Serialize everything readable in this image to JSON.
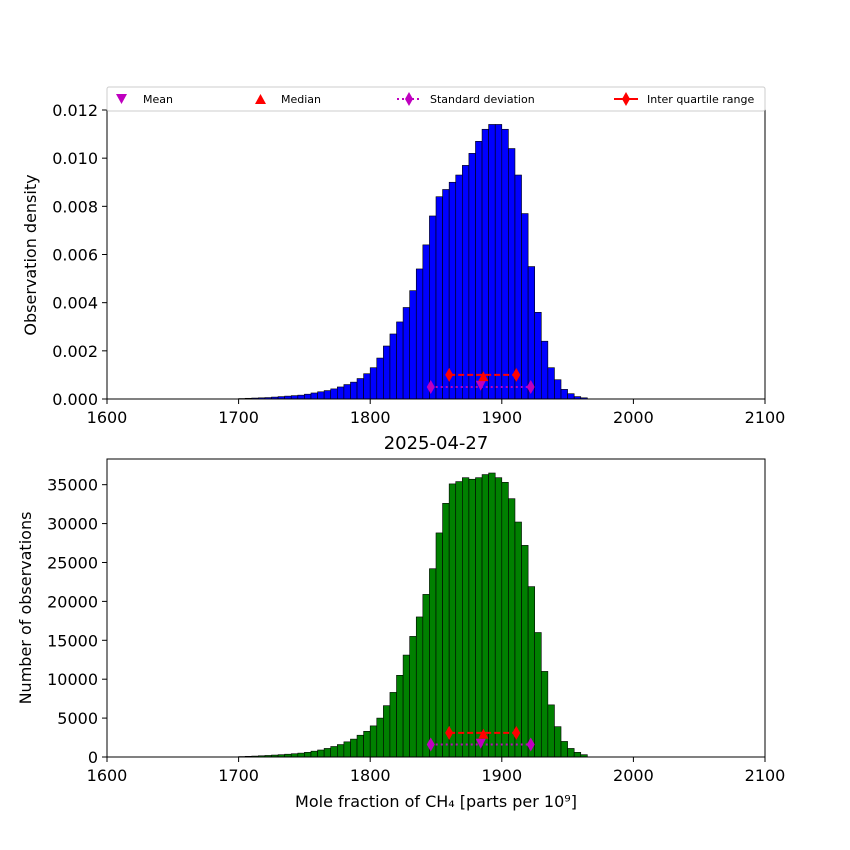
{
  "chart_data": [
    {
      "type": "bar",
      "ylabel": "Observation density",
      "xlim": [
        1600,
        2100
      ],
      "ylim": [
        0,
        0.012
      ],
      "xticks": [
        "1600",
        "1700",
        "1800",
        "1900",
        "2000",
        "2100"
      ],
      "yticks": [
        "0.000",
        "0.002",
        "0.004",
        "0.006",
        "0.008",
        "0.010",
        "0.012"
      ],
      "bar_color": "#0000ff",
      "bins": {
        "start": 1700,
        "width": 5
      },
      "values": [
        2e-05,
        3e-05,
        4e-05,
        5e-05,
        6e-05,
        8e-05,
        0.0001,
        0.00012,
        0.00014,
        0.00016,
        0.0002,
        0.00025,
        0.0003,
        0.00035,
        0.00042,
        0.0005,
        0.0006,
        0.0007,
        0.00085,
        0.00105,
        0.0013,
        0.0017,
        0.0022,
        0.0027,
        0.0032,
        0.0038,
        0.0045,
        0.0054,
        0.0064,
        0.0076,
        0.0084,
        0.0087,
        0.009,
        0.0093,
        0.0097,
        0.0102,
        0.0107,
        0.0112,
        0.0114,
        0.0114,
        0.0112,
        0.0104,
        0.0093,
        0.0077,
        0.0055,
        0.0036,
        0.0024,
        0.0013,
        0.0008,
        0.0004,
        0.00022,
        0.0001,
        5e-05
      ],
      "markers": {
        "mean": {
          "x": 1884,
          "y": 0.00055,
          "color": "#bf00bf"
        },
        "median": {
          "x": 1886,
          "y": 0.00095,
          "color": "#ff0000"
        },
        "std": {
          "x1": 1846,
          "x2": 1922,
          "y": 0.0005,
          "color": "#bf00bf"
        },
        "iqr": {
          "x1": 1860,
          "x2": 1911,
          "y": 0.001,
          "color": "#ff0000"
        }
      },
      "legend": {
        "placement": "top",
        "entries": [
          "Mean",
          "Median",
          "Standard deviation",
          "Inter quartile range"
        ]
      }
    },
    {
      "type": "bar",
      "title": "2025-04-27",
      "xlabel": "Mole fraction of CH₄ [parts per 10⁹]",
      "ylabel": "Number of observations",
      "xlim": [
        1600,
        2100
      ],
      "ylim": [
        0,
        38300
      ],
      "xticks": [
        "1600",
        "1700",
        "1800",
        "1900",
        "2000",
        "2100"
      ],
      "yticks": [
        "0",
        "5000",
        "10000",
        "15000",
        "20000",
        "25000",
        "30000",
        "35000"
      ],
      "bar_color": "#008000",
      "bins": {
        "start": 1700,
        "width": 5
      },
      "values": [
        60,
        90,
        120,
        160,
        200,
        250,
        300,
        360,
        420,
        500,
        600,
        750,
        900,
        1100,
        1350,
        1600,
        1950,
        2300,
        2800,
        3300,
        4000,
        5000,
        6600,
        8300,
        10500,
        13100,
        15500,
        18000,
        20900,
        24200,
        28800,
        32600,
        35100,
        35400,
        35900,
        35700,
        35900,
        36300,
        36500,
        35900,
        35300,
        33200,
        30200,
        27200,
        21900,
        16000,
        11000,
        6700,
        3900,
        2000,
        1100,
        600,
        300
      ],
      "markers": {
        "mean": {
          "x": 1884,
          "y": 1700,
          "color": "#bf00bf"
        },
        "median": {
          "x": 1886,
          "y": 3000,
          "color": "#ff0000"
        },
        "std": {
          "x1": 1846,
          "x2": 1922,
          "y": 1600,
          "color": "#bf00bf"
        },
        "iqr": {
          "x1": 1860,
          "x2": 1911,
          "y": 3100,
          "color": "#ff0000"
        }
      }
    }
  ]
}
